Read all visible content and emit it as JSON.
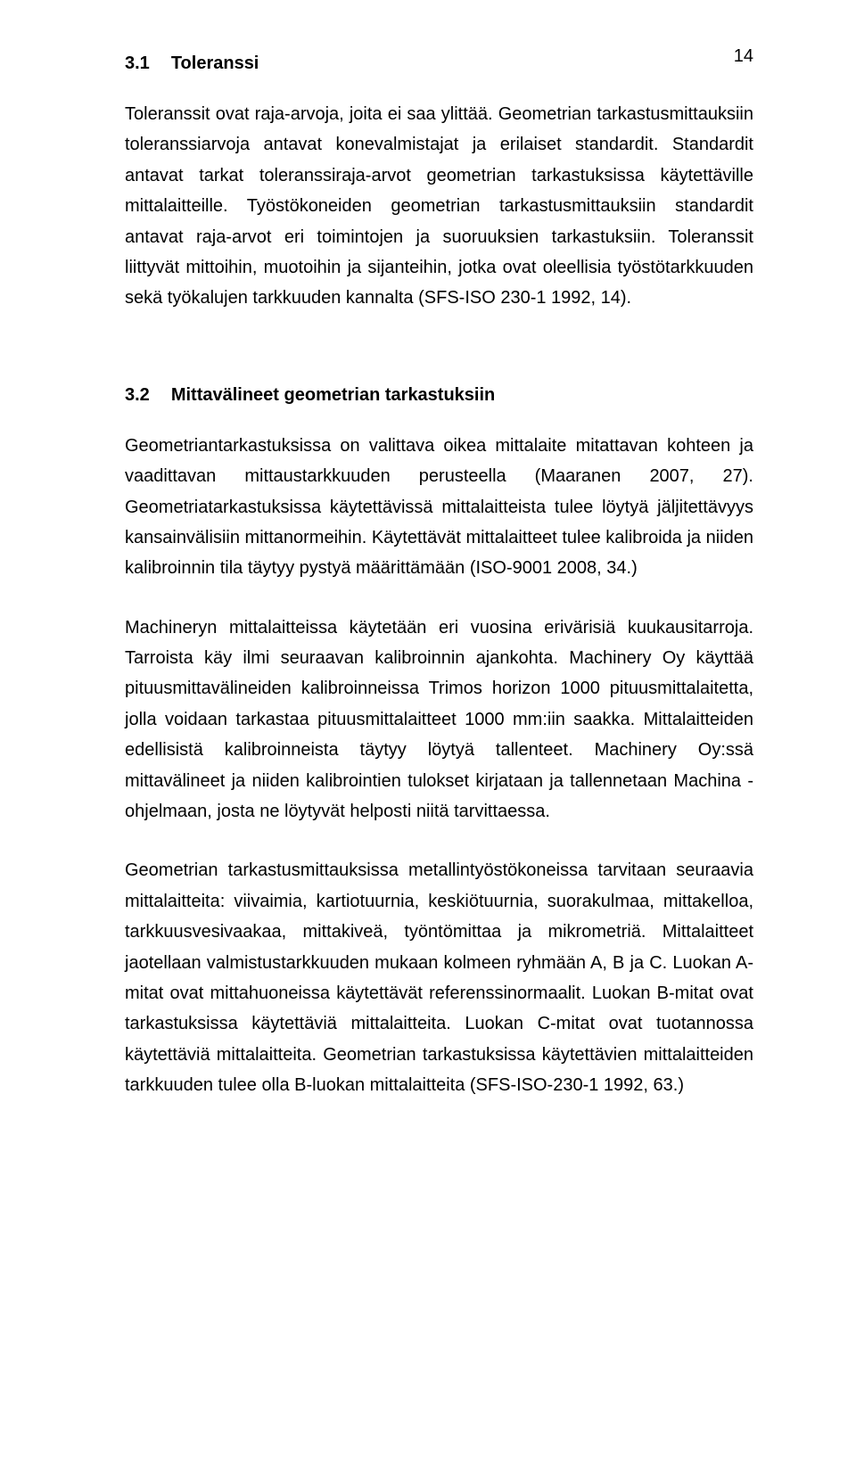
{
  "page_number": "14",
  "section1": {
    "number": "3.1",
    "title": "Toleranssi",
    "paragraph": "Toleranssit ovat raja-arvoja, joita ei saa ylittää. Geometrian tarkastusmittauksiin toleranssiarvoja antavat konevalmistajat ja erilaiset standardit. Standardit antavat tarkat toleranssiraja-arvot geometrian tarkastuksissa käytettäville mittalaitteille. Työstökoneiden geometrian tarkastusmittauksiin standardit antavat raja-arvot eri toimintojen ja suoruuksien tarkastuksiin. Toleranssit liittyvät mittoihin, muotoihin ja sijanteihin, jotka ovat oleellisia työstötarkkuuden sekä työkalujen tarkkuuden kannalta (SFS-ISO 230-1 1992, 14)."
  },
  "section2": {
    "number": "3.2",
    "title": "Mittavälineet geometrian tarkastuksiin",
    "paragraph1": "Geometriantarkastuksissa on valittava oikea mittalaite mitattavan kohteen ja vaadittavan mittaustarkkuuden perusteella (Maaranen 2007, 27). Geometriatarkastuksissa käytettävissä mittalaitteista tulee löytyä jäljitettävyys kansainvälisiin mittanormeihin. Käytettävät mittalaitteet tulee kalibroida ja niiden kalibroinnin tila täytyy pystyä määrittämään (ISO-9001 2008, 34.)",
    "paragraph2": "Machineryn mittalaitteissa käytetään eri vuosina erivärisiä kuukausitarroja. Tarroista käy ilmi seuraavan kalibroinnin ajankohta. Machinery Oy käyttää pituusmittavälineiden kalibroinneissa Trimos horizon 1000 pituusmittalaitetta, jolla voidaan tarkastaa pituusmittalaitteet 1000 mm:iin saakka. Mittalaitteiden edellisistä kalibroinneista täytyy löytyä tallenteet. Machinery Oy:ssä mittavälineet ja niiden kalibrointien tulokset kirjataan ja tallennetaan Machina -ohjelmaan, josta ne löytyvät helposti niitä tarvittaessa.",
    "paragraph3": "Geometrian tarkastusmittauksissa metallintyöstökoneissa tarvitaan seuraavia mittalaitteita: viivaimia, kartiotuurnia, keskiötuurnia, suorakulmaa, mittakelloa, tarkkuusvesivaakaa, mittakiveä, työntömittaa ja mikrometriä. Mittalaitteet jaotellaan valmistustarkkuuden mukaan kolmeen ryhmään A, B ja C. Luokan A-mitat ovat mittahuoneissa käytettävät referenssinormaalit. Luokan B-mitat ovat tarkastuksissa käytettäviä mittalaitteita. Luokan C-mitat ovat tuotannossa käytettäviä mittalaitteita. Geometrian tarkastuksissa käytettävien mittalaitteiden tarkkuuden tulee olla B-luokan mittalaitteita (SFS-ISO-230-1 1992, 63.)"
  }
}
